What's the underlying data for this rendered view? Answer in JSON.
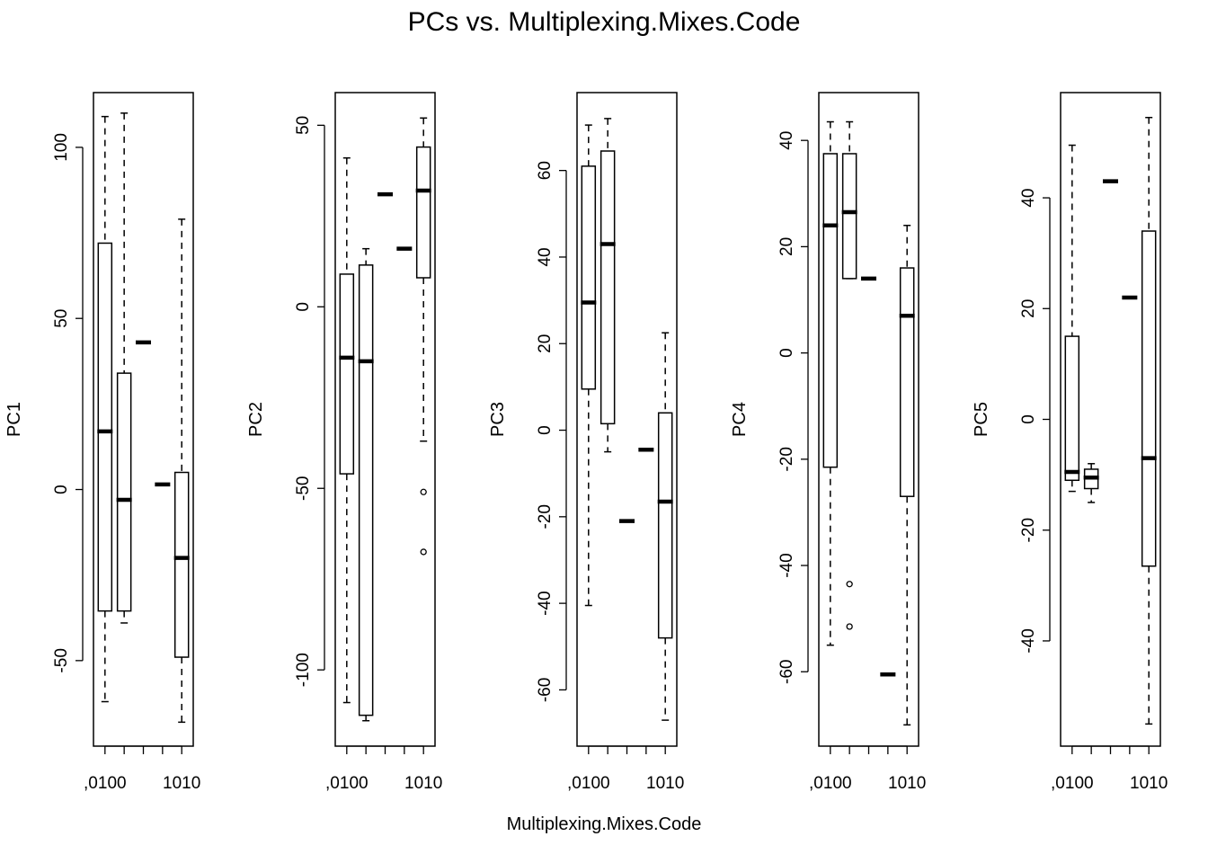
{
  "figure": {
    "title": "PCs vs. Multiplexing.Mixes.Code",
    "xlabel": "Multiplexing.Mixes.Code"
  },
  "chart_data": [
    {
      "type": "box",
      "ylabel": "PC1",
      "ylim": [
        -75,
        116
      ],
      "yticks": [
        -50,
        0,
        50,
        100
      ],
      "ytick_labels": [
        "-50",
        "0",
        "50",
        "100"
      ],
      "xtick_labels": [
        ",0100",
        "1010"
      ],
      "xtick_label_positions": [
        1,
        5
      ],
      "groups": [
        {
          "lower": -62,
          "q1": -35.5,
          "median": 17,
          "q3": 72,
          "upper": 109,
          "outliers": []
        },
        {
          "lower": -39,
          "q1": -35.5,
          "median": -3,
          "q3": 34,
          "upper": 110,
          "outliers": []
        },
        {
          "lower": 43,
          "q1": 43,
          "median": 43,
          "q3": 43,
          "upper": 43,
          "outliers": []
        },
        {
          "lower": 1.5,
          "q1": 1.5,
          "median": 1.5,
          "q3": 1.5,
          "upper": 1.5,
          "outliers": []
        },
        {
          "lower": -68,
          "q1": -49,
          "median": -20,
          "q3": 5,
          "upper": 79,
          "outliers": []
        }
      ]
    },
    {
      "type": "box",
      "ylabel": "PC2",
      "ylim": [
        -121,
        59
      ],
      "yticks": [
        -100,
        -50,
        0,
        50
      ],
      "ytick_labels": [
        "-100",
        "-50",
        "0",
        "50"
      ],
      "xtick_labels": [
        ",0100",
        "1010"
      ],
      "xtick_label_positions": [
        1,
        5
      ],
      "groups": [
        {
          "lower": -109,
          "q1": -46,
          "median": -14,
          "q3": 9,
          "upper": 41,
          "outliers": []
        },
        {
          "lower": -114,
          "q1": -112.5,
          "median": -15,
          "q3": 11.5,
          "upper": 16,
          "outliers": []
        },
        {
          "lower": 31,
          "q1": 31,
          "median": 31,
          "q3": 31,
          "upper": 31,
          "outliers": []
        },
        {
          "lower": 16,
          "q1": 16,
          "median": 16,
          "q3": 16,
          "upper": 16,
          "outliers": []
        },
        {
          "lower": -37,
          "q1": 8,
          "median": 32,
          "q3": 44,
          "upper": 52,
          "outliers": [
            -51,
            -67.5
          ]
        }
      ]
    },
    {
      "type": "box",
      "ylabel": "PC3",
      "ylim": [
        -73,
        78
      ],
      "yticks": [
        -60,
        -40,
        -20,
        0,
        20,
        40,
        60
      ],
      "ytick_labels": [
        "-60",
        "-40",
        "-20",
        "0",
        "20",
        "40",
        "60"
      ],
      "xtick_labels": [
        ",0100",
        "1010"
      ],
      "xtick_label_positions": [
        1,
        5
      ],
      "groups": [
        {
          "lower": -40.5,
          "q1": 9.5,
          "median": 29.5,
          "q3": 61,
          "upper": 70.5,
          "outliers": []
        },
        {
          "lower": -5,
          "q1": 1.5,
          "median": 43,
          "q3": 64.5,
          "upper": 72,
          "outliers": []
        },
        {
          "lower": -21,
          "q1": -21,
          "median": -21,
          "q3": -21,
          "upper": -21,
          "outliers": []
        },
        {
          "lower": -4.5,
          "q1": -4.5,
          "median": -4.5,
          "q3": -4.5,
          "upper": -4.5,
          "outliers": []
        },
        {
          "lower": -67,
          "q1": -48,
          "median": -16.5,
          "q3": 4,
          "upper": 22.5,
          "outliers": []
        }
      ]
    },
    {
      "type": "box",
      "ylabel": "PC4",
      "ylim": [
        -74,
        49
      ],
      "yticks": [
        -60,
        -40,
        -20,
        0,
        20,
        40
      ],
      "ytick_labels": [
        "-60",
        "-40",
        "-20",
        "0",
        "20",
        "40"
      ],
      "xtick_labels": [
        ",0100",
        "1010"
      ],
      "xtick_label_positions": [
        1,
        5
      ],
      "groups": [
        {
          "lower": -55,
          "q1": -21.5,
          "median": 24,
          "q3": 37.5,
          "upper": 43.5,
          "outliers": []
        },
        {
          "lower": 14,
          "q1": 14,
          "median": 26.5,
          "q3": 37.5,
          "upper": 43.5,
          "outliers": [
            -43.5,
            -51.5
          ]
        },
        {
          "lower": 14,
          "q1": 14,
          "median": 14,
          "q3": 14,
          "upper": 14,
          "outliers": []
        },
        {
          "lower": -60.5,
          "q1": -60.5,
          "median": -60.5,
          "q3": -60.5,
          "upper": -60.5,
          "outliers": []
        },
        {
          "lower": -70,
          "q1": -27,
          "median": 7,
          "q3": 16,
          "upper": 24,
          "outliers": []
        }
      ]
    },
    {
      "type": "box",
      "ylabel": "PC5",
      "ylim": [
        -59,
        59
      ],
      "yticks": [
        -40,
        -20,
        0,
        20,
        40
      ],
      "ytick_labels": [
        "-40",
        "-20",
        "0",
        "20",
        "40"
      ],
      "xtick_labels": [
        ",0100",
        "1010"
      ],
      "xtick_label_positions": [
        1,
        5
      ],
      "groups": [
        {
          "lower": -13,
          "q1": -11,
          "median": -9.5,
          "q3": 15,
          "upper": 49.5,
          "outliers": []
        },
        {
          "lower": -15,
          "q1": -12.5,
          "median": -10.5,
          "q3": -9,
          "upper": -8,
          "outliers": []
        },
        {
          "lower": 43,
          "q1": 43,
          "median": 43,
          "q3": 43,
          "upper": 43,
          "outliers": []
        },
        {
          "lower": 22,
          "q1": 22,
          "median": 22,
          "q3": 22,
          "upper": 22,
          "outliers": []
        },
        {
          "lower": -55,
          "q1": -26.5,
          "median": -7,
          "q3": 34,
          "upper": 54.5,
          "outliers": []
        }
      ]
    }
  ]
}
